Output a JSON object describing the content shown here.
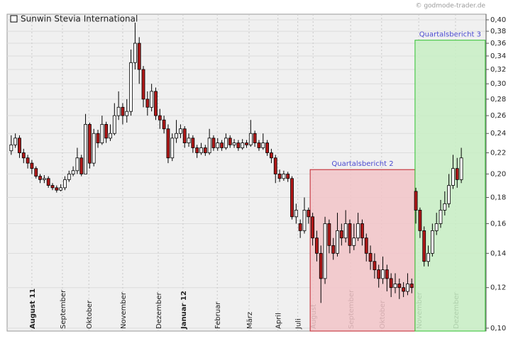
{
  "chart_data": {
    "type": "candlestick",
    "title": "Sunwin Stevia International",
    "source": "© godmode-trader.de",
    "log_y": true,
    "up_color": "#ffffff",
    "down_color": "#b01818",
    "xlim": [
      0,
      116
    ],
    "ylim": [
      0.0987,
      0.4103
    ],
    "yticks": [
      {
        "value": 0.1,
        "label": "0,10"
      },
      {
        "value": 0.12,
        "label": "0,12"
      },
      {
        "value": 0.14,
        "label": "0,14"
      },
      {
        "value": 0.16,
        "label": "0,16"
      },
      {
        "value": 0.18,
        "label": "0,18"
      },
      {
        "value": 0.2,
        "label": "0,20"
      },
      {
        "value": 0.22,
        "label": "0,22"
      },
      {
        "value": 0.24,
        "label": "0,24"
      },
      {
        "value": 0.26,
        "label": "0,26"
      },
      {
        "value": 0.28,
        "label": "0,28"
      },
      {
        "value": 0.3,
        "label": "0,30"
      },
      {
        "value": 0.32,
        "label": "0,32"
      },
      {
        "value": 0.34,
        "label": "0,34"
      },
      {
        "value": 0.36,
        "label": "0,36"
      },
      {
        "value": 0.38,
        "label": "0,38"
      },
      {
        "value": 0.4,
        "label": "0,40"
      }
    ],
    "xticks": [
      {
        "value": 6.0,
        "label": "August 11",
        "bold": true
      },
      {
        "value": 13.4,
        "label": "September"
      },
      {
        "value": 19.8,
        "label": "Oktober"
      },
      {
        "value": 28.0,
        "label": "November"
      },
      {
        "value": 36.6,
        "label": "Dezember"
      },
      {
        "value": 42.6,
        "label": "Januar 12",
        "bold": true
      },
      {
        "value": 50.9,
        "label": "Februar"
      },
      {
        "value": 58.6,
        "label": "März"
      },
      {
        "value": 65.6,
        "label": "April"
      },
      {
        "value": 70.4,
        "label": "Juli"
      },
      {
        "value": 74.1,
        "label": "August"
      },
      {
        "value": 83.2,
        "label": "September"
      },
      {
        "value": 90.7,
        "label": "Oktober"
      },
      {
        "value": 99.7,
        "label": "November"
      },
      {
        "value": 108.6,
        "label": "Dezember"
      }
    ],
    "grid": true,
    "annotations": [
      {
        "text": "Quartalsbericht 2",
        "x": [
          73.4,
          98.8
        ],
        "top": 0.204,
        "color": "#f2c4c8",
        "border": "#c0202a"
      },
      {
        "text": "Quartalsbericht 3",
        "x": [
          98.8,
          115.8
        ],
        "top": 0.365,
        "color": "#c8eec4",
        "border": "#30c030"
      }
    ],
    "x": [
      1,
      2,
      3,
      4,
      5,
      6,
      7,
      8,
      9,
      10,
      11,
      12,
      13,
      14,
      15,
      16,
      17,
      18,
      19,
      20,
      21,
      22,
      23,
      24,
      25,
      26,
      27,
      28,
      29,
      30,
      31,
      32,
      33,
      34,
      35,
      36,
      37,
      38,
      39,
      40,
      41,
      42,
      43,
      44,
      45,
      46,
      47,
      48,
      49,
      50,
      51,
      52,
      53,
      54,
      55,
      56,
      57,
      58,
      59,
      60,
      61,
      62,
      63,
      64,
      65,
      66,
      67,
      68,
      69,
      70,
      71,
      72,
      73,
      74,
      75,
      76,
      77,
      78,
      79,
      80,
      81,
      82,
      83,
      84,
      85,
      86,
      87,
      88,
      89,
      90,
      91,
      92,
      93,
      94,
      95,
      96,
      97,
      98,
      99,
      100,
      101,
      102,
      103,
      104,
      105,
      106,
      107,
      108,
      109,
      110
    ],
    "open": [
      0.222,
      0.228,
      0.235,
      0.22,
      0.215,
      0.21,
      0.205,
      0.198,
      0.195,
      0.196,
      0.19,
      0.188,
      0.186,
      0.188,
      0.195,
      0.2,
      0.203,
      0.215,
      0.2,
      0.25,
      0.21,
      0.24,
      0.23,
      0.25,
      0.235,
      0.24,
      0.26,
      0.27,
      0.26,
      0.265,
      0.33,
      0.36,
      0.32,
      0.28,
      0.27,
      0.29,
      0.26,
      0.255,
      0.245,
      0.215,
      0.235,
      0.24,
      0.245,
      0.23,
      0.235,
      0.225,
      0.22,
      0.225,
      0.22,
      0.235,
      0.225,
      0.23,
      0.225,
      0.235,
      0.228,
      0.23,
      0.225,
      0.23,
      0.228,
      0.24,
      0.23,
      0.225,
      0.23,
      0.22,
      0.215,
      0.2,
      0.196,
      0.2,
      0.196,
      0.165,
      0.16,
      0.155,
      0.17,
      0.165,
      0.15,
      0.14,
      0.125,
      0.16,
      0.145,
      0.14,
      0.155,
      0.15,
      0.16,
      0.145,
      0.15,
      0.16,
      0.15,
      0.14,
      0.135,
      0.13,
      0.125,
      0.13,
      0.125,
      0.12,
      0.122,
      0.12,
      0.118,
      0.122,
      0.185,
      0.17,
      0.155,
      0.135,
      0.14,
      0.155,
      0.16,
      0.17,
      0.175,
      0.19,
      0.205,
      0.195
    ],
    "high": [
      0.238,
      0.24,
      0.238,
      0.224,
      0.218,
      0.213,
      0.207,
      0.2,
      0.199,
      0.198,
      0.192,
      0.19,
      0.191,
      0.198,
      0.203,
      0.207,
      0.225,
      0.218,
      0.262,
      0.252,
      0.245,
      0.244,
      0.26,
      0.253,
      0.25,
      0.275,
      0.29,
      0.275,
      0.28,
      0.35,
      0.395,
      0.37,
      0.325,
      0.29,
      0.3,
      0.295,
      0.268,
      0.26,
      0.25,
      0.24,
      0.255,
      0.25,
      0.248,
      0.24,
      0.238,
      0.228,
      0.23,
      0.228,
      0.245,
      0.238,
      0.235,
      0.233,
      0.24,
      0.238,
      0.234,
      0.233,
      0.234,
      0.233,
      0.255,
      0.243,
      0.233,
      0.24,
      0.233,
      0.224,
      0.218,
      0.204,
      0.203,
      0.202,
      0.198,
      0.175,
      0.163,
      0.18,
      0.172,
      0.168,
      0.155,
      0.145,
      0.165,
      0.163,
      0.15,
      0.168,
      0.16,
      0.17,
      0.163,
      0.16,
      0.168,
      0.163,
      0.153,
      0.145,
      0.14,
      0.133,
      0.138,
      0.133,
      0.128,
      0.128,
      0.125,
      0.123,
      0.128,
      0.125,
      0.188,
      0.172,
      0.158,
      0.145,
      0.16,
      0.168,
      0.178,
      0.185,
      0.2,
      0.218,
      0.215,
      0.225
    ],
    "low": [
      0.218,
      0.225,
      0.215,
      0.21,
      0.205,
      0.2,
      0.196,
      0.192,
      0.192,
      0.188,
      0.186,
      0.184,
      0.185,
      0.186,
      0.193,
      0.198,
      0.2,
      0.198,
      0.2,
      0.205,
      0.207,
      0.225,
      0.228,
      0.23,
      0.232,
      0.238,
      0.255,
      0.25,
      0.252,
      0.26,
      0.32,
      0.3,
      0.27,
      0.26,
      0.265,
      0.255,
      0.245,
      0.24,
      0.21,
      0.212,
      0.23,
      0.235,
      0.225,
      0.226,
      0.22,
      0.215,
      0.218,
      0.217,
      0.218,
      0.222,
      0.222,
      0.222,
      0.223,
      0.225,
      0.225,
      0.222,
      0.223,
      0.225,
      0.226,
      0.226,
      0.222,
      0.223,
      0.217,
      0.21,
      0.192,
      0.193,
      0.194,
      0.193,
      0.163,
      0.16,
      0.15,
      0.153,
      0.16,
      0.145,
      0.135,
      0.112,
      0.122,
      0.14,
      0.136,
      0.138,
      0.145,
      0.147,
      0.14,
      0.142,
      0.148,
      0.145,
      0.135,
      0.13,
      0.125,
      0.12,
      0.122,
      0.118,
      0.115,
      0.117,
      0.114,
      0.115,
      0.116,
      0.117,
      0.16,
      0.15,
      0.132,
      0.132,
      0.138,
      0.152,
      0.157,
      0.166,
      0.172,
      0.187,
      0.188,
      0.192
    ],
    "close": [
      0.228,
      0.235,
      0.22,
      0.215,
      0.21,
      0.205,
      0.198,
      0.195,
      0.196,
      0.19,
      0.188,
      0.186,
      0.188,
      0.195,
      0.2,
      0.203,
      0.215,
      0.2,
      0.25,
      0.21,
      0.24,
      0.23,
      0.25,
      0.235,
      0.24,
      0.26,
      0.27,
      0.26,
      0.265,
      0.33,
      0.36,
      0.32,
      0.28,
      0.27,
      0.29,
      0.26,
      0.255,
      0.245,
      0.215,
      0.235,
      0.24,
      0.245,
      0.23,
      0.235,
      0.225,
      0.22,
      0.225,
      0.22,
      0.235,
      0.225,
      0.23,
      0.225,
      0.235,
      0.228,
      0.23,
      0.225,
      0.23,
      0.228,
      0.24,
      0.23,
      0.225,
      0.23,
      0.22,
      0.215,
      0.2,
      0.196,
      0.2,
      0.196,
      0.165,
      0.17,
      0.155,
      0.17,
      0.165,
      0.15,
      0.14,
      0.125,
      0.16,
      0.145,
      0.14,
      0.155,
      0.15,
      0.16,
      0.145,
      0.15,
      0.16,
      0.15,
      0.14,
      0.135,
      0.13,
      0.125,
      0.13,
      0.125,
      0.12,
      0.122,
      0.12,
      0.118,
      0.122,
      0.12,
      0.17,
      0.155,
      0.135,
      0.14,
      0.155,
      0.16,
      0.17,
      0.175,
      0.19,
      0.205,
      0.195,
      0.215
    ]
  }
}
